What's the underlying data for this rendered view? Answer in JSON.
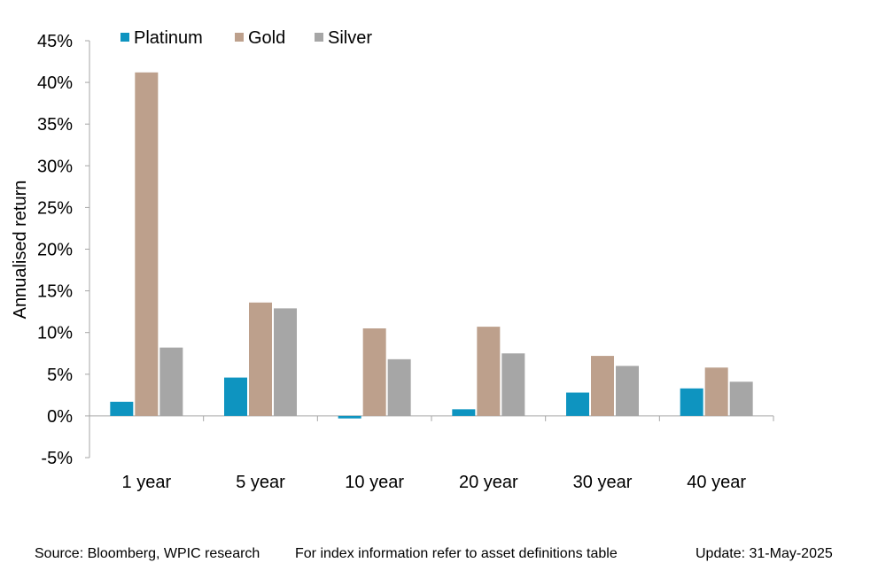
{
  "chart_data": {
    "type": "bar",
    "title": "",
    "xlabel": "",
    "ylabel": "Annualised return",
    "ylim": [
      -5,
      45
    ],
    "yticks": [
      -5,
      0,
      5,
      10,
      15,
      20,
      25,
      30,
      35,
      40,
      45
    ],
    "ytick_labels": [
      "-5%",
      "0%",
      "5%",
      "10%",
      "15%",
      "20%",
      "25%",
      "30%",
      "35%",
      "40%",
      "45%"
    ],
    "categories": [
      "1 year",
      "5 year",
      "10 year",
      "20 year",
      "30 year",
      "40 year"
    ],
    "legend_position": "top-left",
    "grid": false,
    "series": [
      {
        "name": "Platinum",
        "color": "#0e94c0",
        "values": [
          1.7,
          4.6,
          -0.3,
          0.8,
          2.8,
          3.3
        ]
      },
      {
        "name": "Gold",
        "color": "#bda08c",
        "values": [
          41.2,
          13.6,
          10.5,
          10.7,
          7.2,
          5.8
        ]
      },
      {
        "name": "Silver",
        "color": "#a6a6a6",
        "values": [
          8.2,
          12.9,
          6.8,
          7.5,
          6.0,
          4.1
        ]
      }
    ]
  },
  "footer": {
    "source": "Source: Bloomberg, WPIC research",
    "note": "For index information refer to asset definitions table",
    "update": "Update: 31-May-2025"
  }
}
